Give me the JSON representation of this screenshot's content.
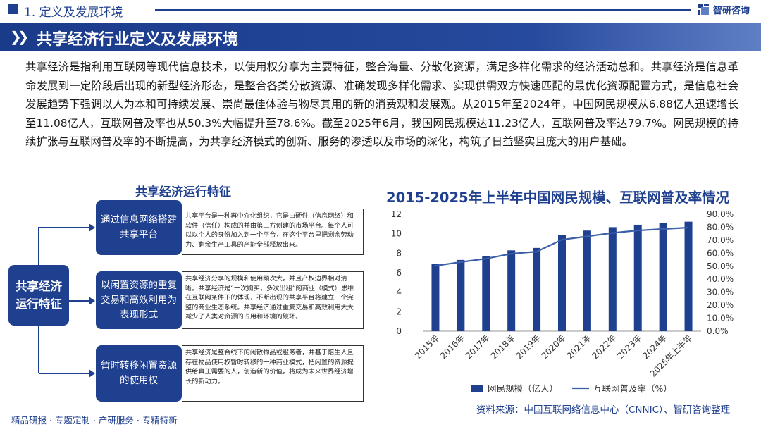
{
  "header": {
    "section": "1. 定义及发展环境",
    "brand": "智研咨询"
  },
  "banner": {
    "title": "共享经济行业定义及发展环境"
  },
  "intro": "共享经济是指利用互联网等现代信息技术，以使用权分享为主要特征，整合海量、分散化资源，满足多样化需求的经济活动总和。共享经济是信息革命发展到一定阶段后出现的新型经济形态，是整合各类分散资源、准确发现多样化需求、实现供需双方快速匹配的最优化资源配置方式，是信息社会发展趋势下强调以人为本和可持续发展、崇尚最佳体验与物尽其用的新的消费观和发展观。从2015年至2024年，中国网民规模从6.88亿人迅速增长至11.08亿人，互联网普及率也从50.3%大幅提升至78.6%。截至2025年6月，我国网民规模达11.23亿人，互联网普及率达79.7%。网民规模的持续扩张与互联网普及率的不断提高，为共享经济模式的创新、服务的渗透以及市场的深化，构筑了日益坚实且庞大的用户基础。",
  "diagram": {
    "title": "共享经济运行特征",
    "center": "共享经济运行特征",
    "features": [
      {
        "label": "通过信息网络搭建共享平台",
        "desc": "共享平台是一种再中介化组织，它是由硬件（信息网络）和软件（信任）构成的并由第三方创建的市场平台。每个人可以以个人的身份加入到一个平台，在这个平台里把剩余劳动力、剩余生产工具的产能全部释放出来。"
      },
      {
        "label": "以闲置资源的重复交易和高效利用为表现形式",
        "desc": "共享经济分享的规模和使用频次大，并且产权边界相对清晰。共享经济是“一次购买，多次出租”的商业（模式）思维在互联网条件下的体现，不断出现的共享平台将建立一个完整的商业生态系统。共享经济通过重复交易和高效利用大大减少了人类对资源的占用和环境的破坏。"
      },
      {
        "label": "暂时转移闲置资源的使用权",
        "desc": "共享经济是整合线下的闲散物品或服务者，并基于陪生人且存在物品使用权暂时转移的一种商业模式，把闲置的资源提供给真正需要的人，创造新的价值，将成为未来世界经济增长的新动力。"
      }
    ]
  },
  "chart_data": {
    "type": "bar",
    "title": "2015-2025年上半年中国网民规模、互联网普及率情况",
    "categories": [
      "2015年",
      "2016年",
      "2017年",
      "2018年",
      "2019年",
      "2020年",
      "2021年",
      "2022年",
      "2023年",
      "2024年",
      "2025年上半年"
    ],
    "series": [
      {
        "name": "网民规模（亿人）",
        "kind": "bar",
        "axis": "left",
        "color": "#1f3f8f",
        "values": [
          6.88,
          7.31,
          7.72,
          8.29,
          8.54,
          9.89,
          10.32,
          10.67,
          10.92,
          11.08,
          11.23
        ]
      },
      {
        "name": "互联网普及率（%）",
        "kind": "line",
        "axis": "right",
        "color": "#3b5ea8",
        "values": [
          50.3,
          53.2,
          55.8,
          59.6,
          61.2,
          70.4,
          73.0,
          75.6,
          77.5,
          78.6,
          79.7
        ]
      }
    ],
    "y_left": {
      "min": 0,
      "max": 12,
      "ticks": [
        "0",
        "2",
        "4",
        "6",
        "8",
        "10",
        "12"
      ]
    },
    "y_right": {
      "min": 0,
      "max": 90,
      "ticks": [
        "0.0%",
        "10.0%",
        "20.0%",
        "30.0%",
        "40.0%",
        "50.0%",
        "60.0%",
        "70.0%",
        "80.0%",
        "90.0%"
      ]
    },
    "legend": "bottom",
    "grid": false
  },
  "source": "资料来源：中国互联网络信息中心（CNNIC）、智研咨询整理",
  "footer": "精品研报 · 专题定制 · 产研服务 · 专精特新"
}
